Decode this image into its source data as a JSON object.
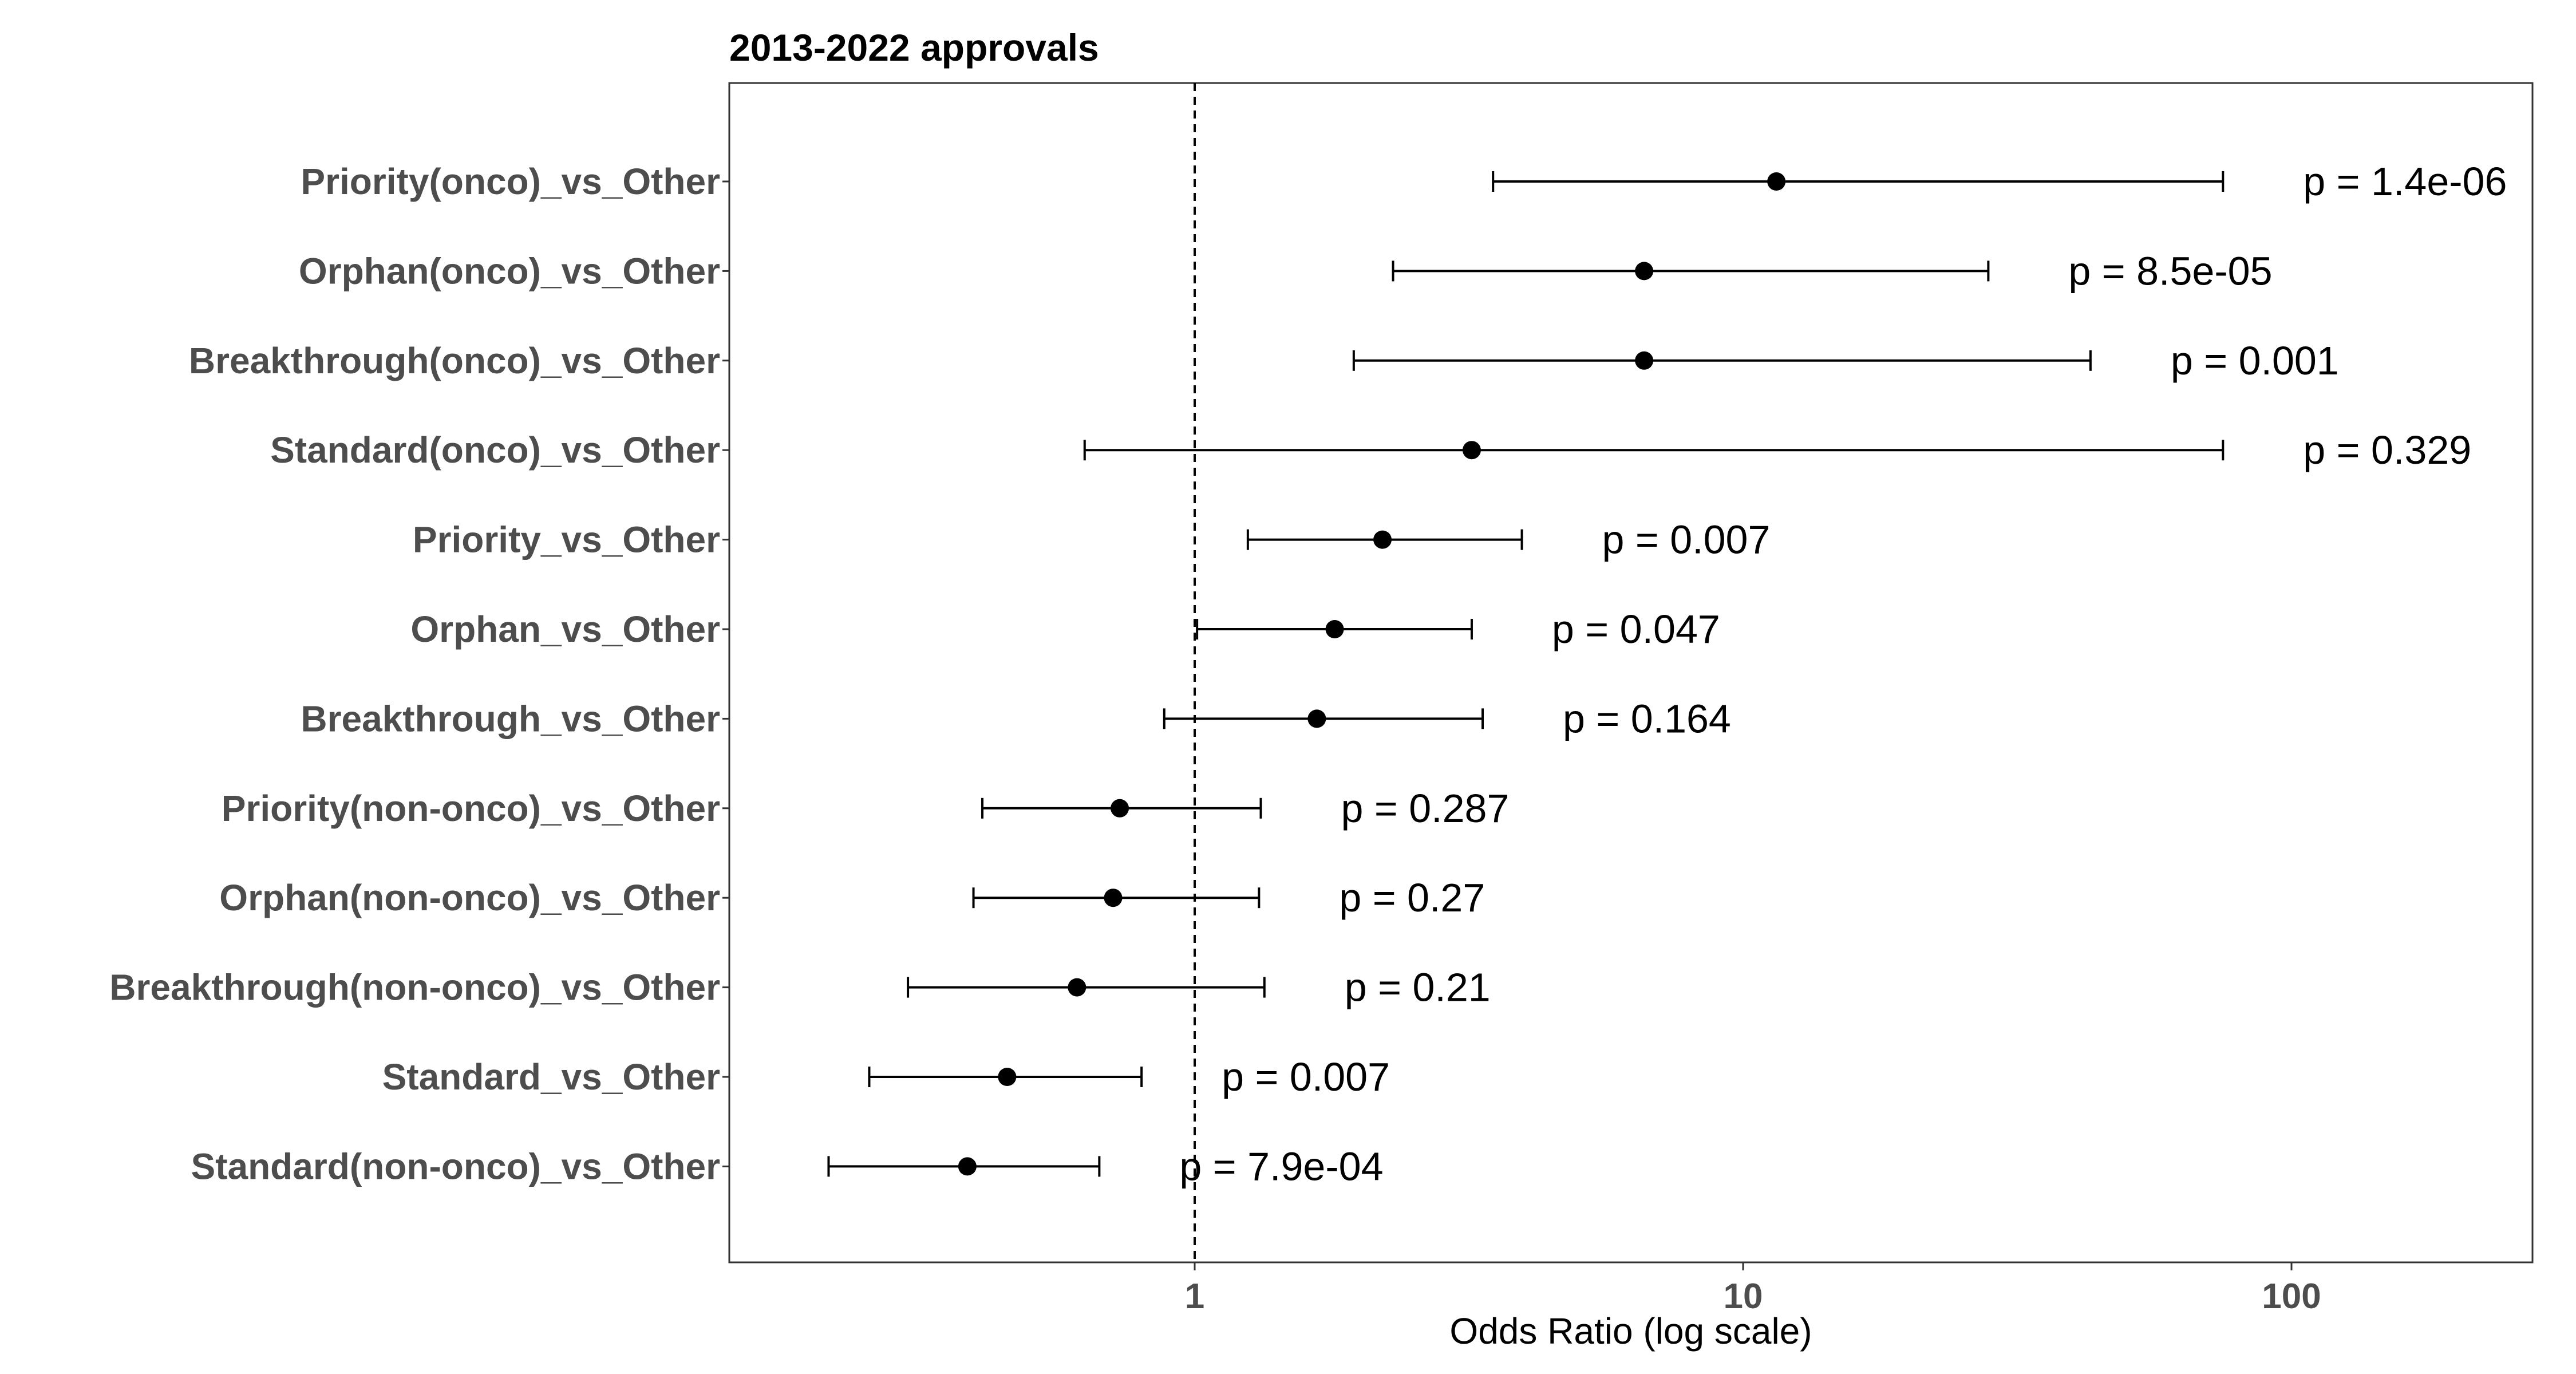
{
  "chart_data": {
    "type": "scatter",
    "subtype": "forest-plot",
    "title": "2013-2022 approvals",
    "xlabel": "Odds Ratio (log scale)",
    "ylabel": "",
    "xscale": "log",
    "xlim": [
      0.12,
      250
    ],
    "xticks": [
      1,
      10,
      100
    ],
    "xtick_labels": [
      "1",
      "10",
      "100"
    ],
    "reference_line": 1,
    "grid": false,
    "colors": {
      "points": "#000000",
      "category_labels": "#4d4d4d",
      "panel_border": "#333333"
    },
    "rows": [
      {
        "label": "Priority(onco)_vs_Other",
        "or": 11.5,
        "ci_low": 3.5,
        "ci_high": 75,
        "p_text": "p = 1.4e-06"
      },
      {
        "label": "Orphan(onco)_vs_Other",
        "or": 6.6,
        "ci_low": 2.3,
        "ci_high": 28,
        "p_text": "p = 8.5e-05"
      },
      {
        "label": "Breakthrough(onco)_vs_Other",
        "or": 6.6,
        "ci_low": 1.95,
        "ci_high": 43,
        "p_text": "p = 0.001"
      },
      {
        "label": "Standard(onco)_vs_Other",
        "or": 3.2,
        "ci_low": 0.63,
        "ci_high": 75,
        "p_text": "p = 0.329"
      },
      {
        "label": "Priority_vs_Other",
        "or": 2.2,
        "ci_low": 1.25,
        "ci_high": 3.95,
        "p_text": "p = 0.007"
      },
      {
        "label": "Orphan_vs_Other",
        "or": 1.8,
        "ci_low": 1.01,
        "ci_high": 3.2,
        "p_text": "p = 0.047"
      },
      {
        "label": "Breakthrough_vs_Other",
        "or": 1.67,
        "ci_low": 0.88,
        "ci_high": 3.35,
        "p_text": "p = 0.164"
      },
      {
        "label": "Priority(non-onco)_vs_Other",
        "or": 0.73,
        "ci_low": 0.41,
        "ci_high": 1.32,
        "p_text": "p = 0.287"
      },
      {
        "label": "Orphan(non-onco)_vs_Other",
        "or": 0.71,
        "ci_low": 0.395,
        "ci_high": 1.31,
        "p_text": "p = 0.27"
      },
      {
        "label": "Breakthrough(non-onco)_vs_Other",
        "or": 0.61,
        "ci_low": 0.3,
        "ci_high": 1.34,
        "p_text": "p = 0.21"
      },
      {
        "label": "Standard_vs_Other",
        "or": 0.455,
        "ci_low": 0.255,
        "ci_high": 0.8,
        "p_text": "p = 0.007"
      },
      {
        "label": "Standard(non-onco)_vs_Other",
        "or": 0.385,
        "ci_low": 0.215,
        "ci_high": 0.67,
        "p_text": "p = 7.9e-04"
      }
    ]
  }
}
